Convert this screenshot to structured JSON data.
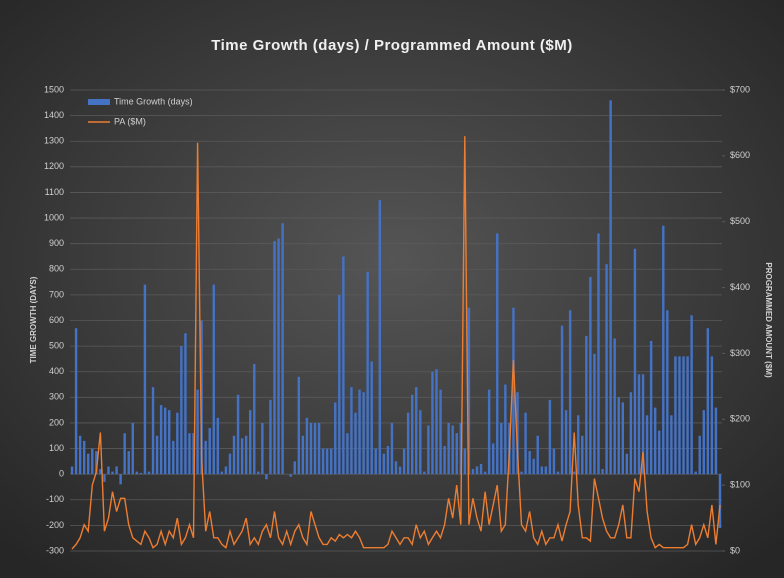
{
  "chart_data": {
    "type": "bar_line",
    "title": "Time Growth (days) / Programmed Amount ($M)",
    "y_label": "TIME GROWTH (DAYS)",
    "y2_label": "PROGRAMMED AMOUNT ($M)",
    "legend": "top-left",
    "grid": true,
    "ylim": [
      -300,
      1500
    ],
    "yticks": [
      -300,
      -200,
      -100,
      0,
      100,
      200,
      300,
      400,
      500,
      600,
      700,
      800,
      900,
      1000,
      1100,
      1200,
      1300,
      1400,
      1500
    ],
    "y2lim": [
      0,
      700
    ],
    "y2ticks": [
      {
        "value": 0,
        "label": "$0"
      },
      {
        "value": 100,
        "label": "$100"
      },
      {
        "value": 200,
        "label": "$200"
      },
      {
        "value": 300,
        "label": "$300"
      },
      {
        "value": 400,
        "label": "$400"
      },
      {
        "value": 500,
        "label": "$500"
      },
      {
        "value": 600,
        "label": "$600"
      },
      {
        "value": 700,
        "label": "$700"
      }
    ],
    "series": [
      {
        "name": "Time Growth (days)",
        "type": "bar",
        "color": "#4472c4",
        "values": [
          30,
          570,
          150,
          130,
          80,
          100,
          90,
          20,
          -30,
          30,
          10,
          30,
          -40,
          160,
          90,
          200,
          10,
          5,
          740,
          10,
          340,
          150,
          270,
          260,
          250,
          130,
          240,
          500,
          550,
          160,
          160,
          330,
          600,
          130,
          180,
          740,
          220,
          10,
          30,
          80,
          150,
          310,
          140,
          150,
          250,
          430,
          10,
          200,
          -20,
          290,
          910,
          920,
          980,
          0,
          -10,
          50,
          380,
          150,
          220,
          200,
          200,
          200,
          100,
          100,
          100,
          280,
          700,
          850,
          160,
          340,
          240,
          330,
          320,
          790,
          440,
          100,
          1070,
          80,
          110,
          200,
          50,
          30,
          100,
          240,
          310,
          340,
          250,
          10,
          190,
          400,
          410,
          330,
          110,
          200,
          190,
          160,
          200,
          100,
          650,
          20,
          30,
          40,
          10,
          330,
          120,
          940,
          200,
          350,
          200,
          650,
          320,
          10,
          240,
          90,
          60,
          150,
          30,
          30,
          290,
          100,
          10,
          580,
          250,
          640,
          10,
          230,
          150,
          540,
          770,
          470,
          940,
          20,
          820,
          1460,
          530,
          300,
          280,
          80,
          320,
          880,
          390,
          390,
          230,
          520,
          260,
          170,
          970,
          640,
          230,
          460,
          460,
          460,
          460,
          620,
          10,
          150,
          250,
          570,
          460,
          260,
          -210
        ]
      },
      {
        "name": "PA ($M)",
        "type": "line",
        "axis": "y2",
        "color": "#ed7d31",
        "values": [
          3,
          10,
          20,
          40,
          30,
          100,
          120,
          180,
          30,
          50,
          90,
          60,
          80,
          80,
          40,
          20,
          15,
          10,
          30,
          20,
          5,
          10,
          30,
          10,
          30,
          20,
          50,
          10,
          20,
          40,
          20,
          620,
          140,
          30,
          60,
          20,
          20,
          10,
          5,
          30,
          10,
          20,
          30,
          50,
          10,
          20,
          10,
          30,
          40,
          20,
          60,
          20,
          10,
          30,
          10,
          30,
          40,
          20,
          10,
          60,
          40,
          20,
          10,
          10,
          20,
          15,
          25,
          20,
          25,
          20,
          30,
          20,
          5,
          5,
          5,
          5,
          5,
          5,
          10,
          30,
          20,
          10,
          20,
          20,
          10,
          40,
          20,
          30,
          10,
          20,
          30,
          20,
          40,
          80,
          50,
          100,
          40,
          630,
          40,
          80,
          50,
          30,
          90,
          40,
          70,
          100,
          30,
          40,
          150,
          290,
          150,
          40,
          30,
          60,
          20,
          10,
          30,
          10,
          20,
          20,
          40,
          15,
          40,
          60,
          180,
          70,
          20,
          20,
          15,
          110,
          80,
          50,
          30,
          20,
          20,
          40,
          70,
          20,
          20,
          110,
          90,
          150,
          60,
          20,
          5,
          10,
          5,
          5,
          5,
          5,
          5,
          5,
          10,
          40,
          10,
          20,
          40,
          20,
          70,
          10,
          70
        ]
      }
    ]
  }
}
